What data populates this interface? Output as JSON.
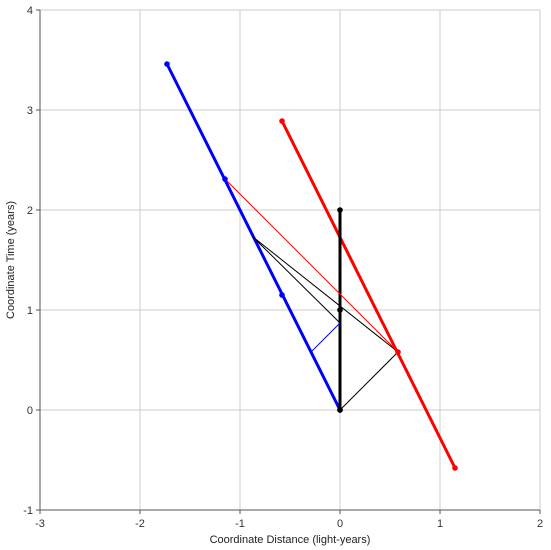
{
  "chart_data": {
    "type": "line",
    "title": "",
    "xlabel": "Coordinate Distance (light-years)",
    "ylabel": "Coordinate Time (years)",
    "xlim": [
      -3,
      2
    ],
    "ylim": [
      -1,
      4
    ],
    "xticks": [
      -3,
      -2,
      -1,
      0,
      1,
      2
    ],
    "yticks": [
      -1,
      0,
      1,
      2,
      3,
      4
    ],
    "grid": true,
    "legend": "none",
    "colors": {
      "blue": "#0000ff",
      "red": "#ff0000",
      "black": "#000000",
      "grid": "#cccccc",
      "axis": "#555555"
    },
    "series": [
      {
        "color": "#0000ff",
        "style": "thick",
        "points": [
          [
            0,
            0
          ],
          [
            -1.73,
            3.46
          ]
        ],
        "markers": [
          [
            0,
            0
          ],
          [
            -0.58,
            1.15
          ],
          [
            -1.15,
            2.31
          ],
          [
            -1.73,
            3.46
          ]
        ]
      },
      {
        "color": "#ff0000",
        "style": "thick",
        "points": [
          [
            1.15,
            -0.58
          ],
          [
            -0.58,
            2.89
          ]
        ],
        "markers": [
          [
            1.15,
            -0.58
          ],
          [
            0.58,
            0.58
          ],
          [
            -0.58,
            2.89
          ]
        ]
      },
      {
        "color": "#000000",
        "style": "thick",
        "points": [
          [
            0,
            0
          ],
          [
            0,
            2
          ]
        ],
        "markers": [
          [
            0,
            0
          ],
          [
            0,
            1
          ],
          [
            0,
            2
          ]
        ]
      },
      {
        "color": "#000000",
        "style": "thin",
        "points": [
          [
            0,
            0
          ],
          [
            0.58,
            0.58
          ],
          [
            -0.87,
            1.73
          ]
        ]
      },
      {
        "color": "#000000",
        "style": "thin",
        "points": [
          [
            -0.87,
            1.73
          ],
          [
            0,
            0.87
          ]
        ]
      },
      {
        "color": "#0000ff",
        "style": "thin",
        "points": [
          [
            0,
            0.87
          ],
          [
            -0.29,
            0.58
          ]
        ]
      },
      {
        "color": "#ff0000",
        "style": "thin",
        "points": [
          [
            -1.15,
            2.31
          ],
          [
            0.58,
            0.58
          ]
        ]
      }
    ]
  }
}
